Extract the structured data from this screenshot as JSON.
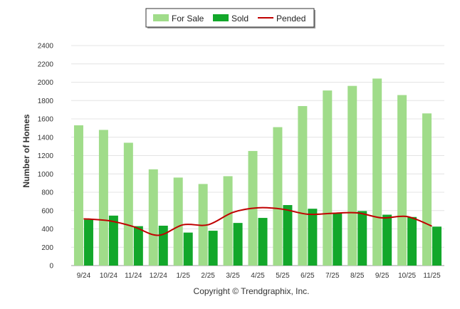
{
  "chart_data": {
    "type": "bar",
    "title": "",
    "xlabel": "",
    "ylabel": "Number of Homes",
    "ylim": [
      0,
      2400
    ],
    "yticks": [
      0,
      200,
      400,
      600,
      800,
      1000,
      1200,
      1400,
      1600,
      1800,
      2000,
      2200,
      2400
    ],
    "categories": [
      "9/24",
      "10/24",
      "11/24",
      "12/24",
      "1/25",
      "2/25",
      "3/25",
      "4/25",
      "5/25",
      "6/25",
      "7/25",
      "8/25",
      "9/25",
      "10/25",
      "11/25"
    ],
    "series": [
      {
        "name": "For Sale",
        "type": "bar",
        "color": "#a0dc8a",
        "values": [
          1530,
          1480,
          1340,
          1050,
          960,
          890,
          975,
          1250,
          1510,
          1740,
          1910,
          1960,
          2040,
          1860,
          1660
        ]
      },
      {
        "name": "Sold",
        "type": "bar",
        "color": "#12a72a",
        "values": [
          500,
          545,
          430,
          435,
          360,
          380,
          465,
          520,
          660,
          620,
          570,
          595,
          555,
          530,
          425
        ]
      },
      {
        "name": "Pended",
        "type": "line",
        "color": "#c00000",
        "values": [
          510,
          490,
          425,
          330,
          445,
          445,
          580,
          630,
          615,
          560,
          570,
          575,
          520,
          535,
          430
        ]
      }
    ],
    "legend": {
      "position": "top-center",
      "entries": [
        "For Sale",
        "Sold",
        "Pended"
      ]
    },
    "grid": true,
    "copyright": "Copyright © Trendgraphix, Inc."
  }
}
